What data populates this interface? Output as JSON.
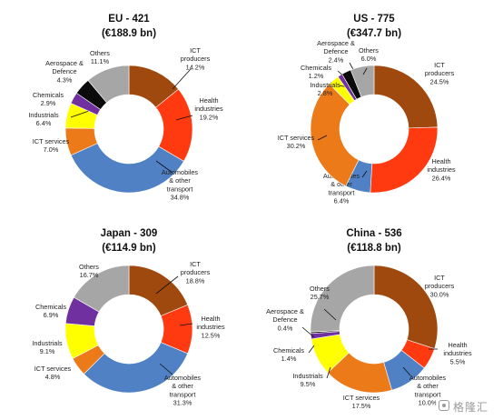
{
  "chart_data": [
    {
      "type": "pie",
      "title": "EU - 421",
      "subtitle": "(€188.9 bn)",
      "slices": [
        {
          "name": "ICT producers",
          "value": 14.2,
          "label": "ICT\nproducers\n14.2%",
          "color": "#a0490e"
        },
        {
          "name": "Health industries",
          "value": 19.2,
          "label": "Health\nindustries\n19.2%",
          "color": "#ff3a10"
        },
        {
          "name": "Automobiles & other transport",
          "value": 34.8,
          "label": "Automobiles\n& other\ntransport\n34.8%",
          "color": "#4f81c4"
        },
        {
          "name": "ICT services",
          "value": 7.0,
          "label": "ICT services\n7.0%",
          "color": "#ec7a19"
        },
        {
          "name": "Industrials",
          "value": 6.4,
          "label": "Industrials\n6.4%",
          "color": "#ffff00"
        },
        {
          "name": "Chemicals",
          "value": 2.9,
          "label": "Chemicals\n2.9%",
          "color": "#7030a0"
        },
        {
          "name": "Aerospace & Defence",
          "value": 4.3,
          "label": "Aerospace &\nDefence\n4.3%",
          "color": "#0b0b0b"
        },
        {
          "name": "Others",
          "value": 11.1,
          "label": "Others\n11.1%",
          "color": "#a6a6a6"
        }
      ]
    },
    {
      "type": "pie",
      "title": "US - 775",
      "subtitle": "(€347.7 bn)",
      "slices": [
        {
          "name": "ICT producers",
          "value": 24.5,
          "label": "ICT\nproducers\n24.5%",
          "color": "#a0490e"
        },
        {
          "name": "Health industries",
          "value": 26.4,
          "label": "Health\nindustries\n26.4%",
          "color": "#ff3a10"
        },
        {
          "name": "Automobiles & other transport",
          "value": 6.4,
          "label": "Automobiles\n& other\ntransport\n6.4%",
          "color": "#4f81c4"
        },
        {
          "name": "ICT services",
          "value": 30.2,
          "label": "ICT services\n30.2%",
          "color": "#ec7a19"
        },
        {
          "name": "Industrials",
          "value": 2.8,
          "label": "Industrials\n2.8%",
          "color": "#ffff00"
        },
        {
          "name": "Chemicals",
          "value": 1.2,
          "label": "Chemicals\n1.2%",
          "color": "#7030a0"
        },
        {
          "name": "Aerospace & Defence",
          "value": 2.4,
          "label": "Aerospace &\nDefence\n2.4%",
          "color": "#0b0b0b"
        },
        {
          "name": "Others",
          "value": 6.0,
          "label": "Others\n6.0%",
          "color": "#a6a6a6"
        }
      ]
    },
    {
      "type": "pie",
      "title": "Japan - 309",
      "subtitle": "(€114.9 bn)",
      "slices": [
        {
          "name": "ICT producers",
          "value": 18.8,
          "label": "ICT\nproducers\n18.8%",
          "color": "#a0490e"
        },
        {
          "name": "Health industries",
          "value": 12.5,
          "label": "Health\nindustries\n12.5%",
          "color": "#ff3a10"
        },
        {
          "name": "Automobiles & other transport",
          "value": 31.3,
          "label": "Automobiles\n& other\ntransport\n31.3%",
          "color": "#4f81c4"
        },
        {
          "name": "ICT services",
          "value": 4.8,
          "label": "ICT services\n4.8%",
          "color": "#ec7a19"
        },
        {
          "name": "Industrials",
          "value": 9.1,
          "label": "Industrials\n9.1%",
          "color": "#ffff00"
        },
        {
          "name": "Chemicals",
          "value": 6.9,
          "label": "Chemicals\n6.9%",
          "color": "#7030a0"
        },
        {
          "name": "Others",
          "value": 16.7,
          "label": "Others\n16.7%",
          "color": "#a6a6a6"
        }
      ]
    },
    {
      "type": "pie",
      "title": "China - 536",
      "subtitle": "(€118.8 bn)",
      "slices": [
        {
          "name": "ICT producers",
          "value": 30.0,
          "label": "ICT\nproducers\n30.0%",
          "color": "#a0490e"
        },
        {
          "name": "Health industries",
          "value": 5.5,
          "label": "Health\nindustries\n5.5%",
          "color": "#ff3a10"
        },
        {
          "name": "Automobiles & other transport",
          "value": 10.0,
          "label": "Automobiles\n& other\ntransport\n10.0%",
          "color": "#4f81c4"
        },
        {
          "name": "ICT services",
          "value": 17.5,
          "label": "ICT services\n17.5%",
          "color": "#ec7a19"
        },
        {
          "name": "Industrials",
          "value": 9.5,
          "label": "Industrials\n9.5%",
          "color": "#ffff00"
        },
        {
          "name": "Chemicals",
          "value": 1.4,
          "label": "Chemicals\n1.4%",
          "color": "#7030a0"
        },
        {
          "name": "Aerospace & Defence",
          "value": 0.4,
          "label": "Aerospace &\nDefence\n0.4%",
          "color": "#0b0b0b"
        },
        {
          "name": "Others",
          "value": 25.7,
          "label": "Others\n25.7%",
          "color": "#a6a6a6"
        }
      ]
    }
  ],
  "watermark": {
    "text": "格隆汇",
    "icon": "gelonghui-logo-icon"
  }
}
